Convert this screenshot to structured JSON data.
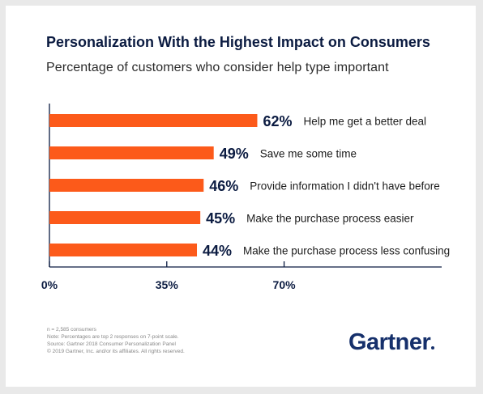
{
  "title": "Personalization With the Highest Impact on Consumers",
  "subtitle": "Percentage of customers who consider help type important",
  "chart_data": {
    "type": "bar",
    "orientation": "horizontal",
    "categories": [
      "Help me get a better deal",
      "Save me some time",
      "Provide information I didn't have before",
      "Make the purchase process easier",
      "Make the purchase process less confusing"
    ],
    "values": [
      62,
      49,
      46,
      45,
      44
    ],
    "value_labels": [
      "62%",
      "49%",
      "46%",
      "45%",
      "44%"
    ],
    "xticks": [
      0,
      35,
      70
    ],
    "xtick_labels": [
      "0%",
      "35%",
      "70%"
    ],
    "xlim": [
      0,
      117
    ],
    "bar_color": "#fc5a1a",
    "axis_color": "#0b1b41",
    "grid": false
  },
  "footnotes": [
    "n = 2,585 consumers",
    "Note: Percentages are top 2 responses on 7-point scale.",
    "Source: Gartner 2018 Consumer Personalization Panel",
    "© 2019 Gartner, Inc. and/or its affiliates. All rights reserved."
  ],
  "logo": {
    "text": "Gartner"
  }
}
